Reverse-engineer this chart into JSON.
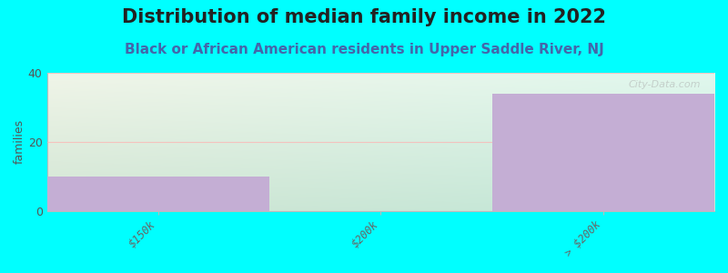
{
  "title": "Distribution of median family income in 2022",
  "subtitle": "Black or African American residents in Upper Saddle River, NJ",
  "categories": [
    "$150k",
    "$200k",
    "> $200k"
  ],
  "values": [
    10,
    0,
    34
  ],
  "bar_color": "#c4aed4",
  "background_color": "#00ffff",
  "ylabel": "families",
  "ylim": [
    0,
    40
  ],
  "yticks": [
    0,
    20,
    40
  ],
  "watermark": "City-Data.com",
  "title_fontsize": 15,
  "subtitle_fontsize": 11,
  "subtitle_color": "#4466aa",
  "grid_color": "#ffb0b0",
  "bin_edges": [
    0,
    1,
    2,
    3
  ],
  "bar_width": 1.0
}
